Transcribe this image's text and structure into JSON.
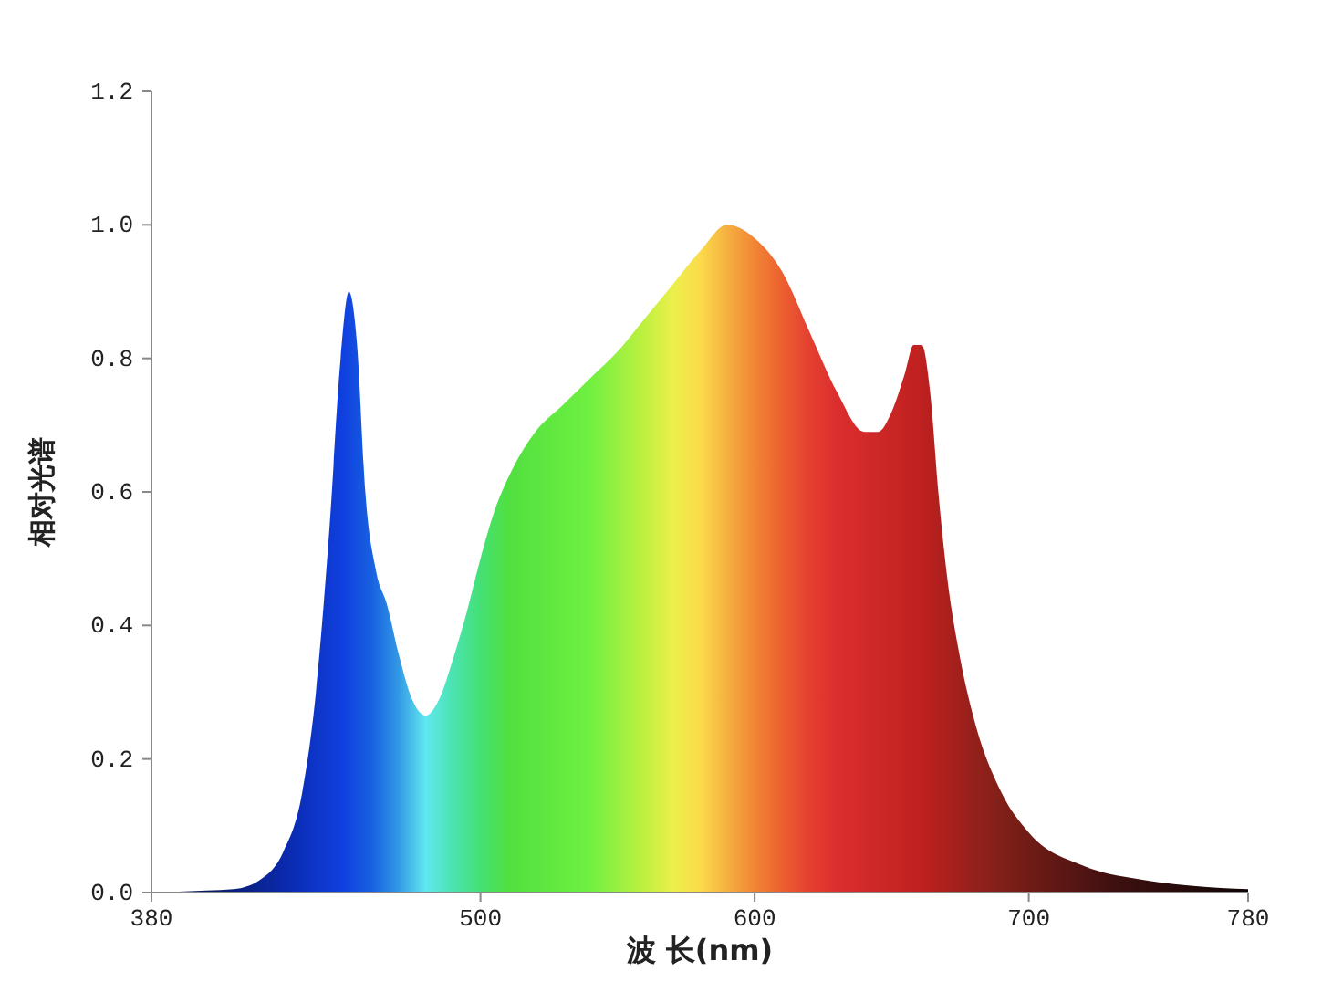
{
  "chart_data": {
    "type": "area",
    "xlabel": "波 长(nm)",
    "ylabel": "相对光谱",
    "x": [
      380,
      400,
      410,
      420,
      428,
      435,
      440,
      445,
      449,
      452,
      455,
      458,
      462,
      466,
      470,
      475,
      480,
      485,
      490,
      495,
      500,
      505,
      510,
      520,
      530,
      540,
      550,
      560,
      570,
      580,
      590,
      600,
      610,
      620,
      630,
      640,
      645,
      650,
      655,
      658,
      661,
      664,
      667,
      670,
      675,
      680,
      690,
      700,
      720,
      740,
      760,
      780
    ],
    "values": [
      0,
      0.003,
      0.005,
      0.02,
      0.06,
      0.15,
      0.3,
      0.55,
      0.8,
      0.9,
      0.82,
      0.6,
      0.48,
      0.43,
      0.36,
      0.29,
      0.265,
      0.29,
      0.35,
      0.42,
      0.5,
      0.57,
      0.62,
      0.69,
      0.73,
      0.77,
      0.81,
      0.86,
      0.91,
      0.96,
      1.0,
      0.98,
      0.93,
      0.84,
      0.75,
      0.69,
      0.69,
      0.72,
      0.78,
      0.82,
      0.82,
      0.75,
      0.6,
      0.48,
      0.35,
      0.26,
      0.15,
      0.09,
      0.04,
      0.02,
      0.01,
      0.005
    ],
    "xlim": [
      380,
      780
    ],
    "xticks": [
      380,
      500,
      600,
      700,
      780
    ],
    "ylim": [
      0,
      1.2
    ],
    "yticks": [
      {
        "value": 0,
        "label": "0.0"
      },
      {
        "value": 0.2,
        "label": "0.2"
      },
      {
        "value": 0.4,
        "label": "0.4"
      },
      {
        "value": 0.6,
        "label": "0.6"
      },
      {
        "value": 0.8,
        "label": "0.8"
      },
      {
        "value": 1,
        "label": "1.0"
      },
      {
        "value": 1.2,
        "label": "1.2"
      }
    ],
    "marker": "none"
  }
}
